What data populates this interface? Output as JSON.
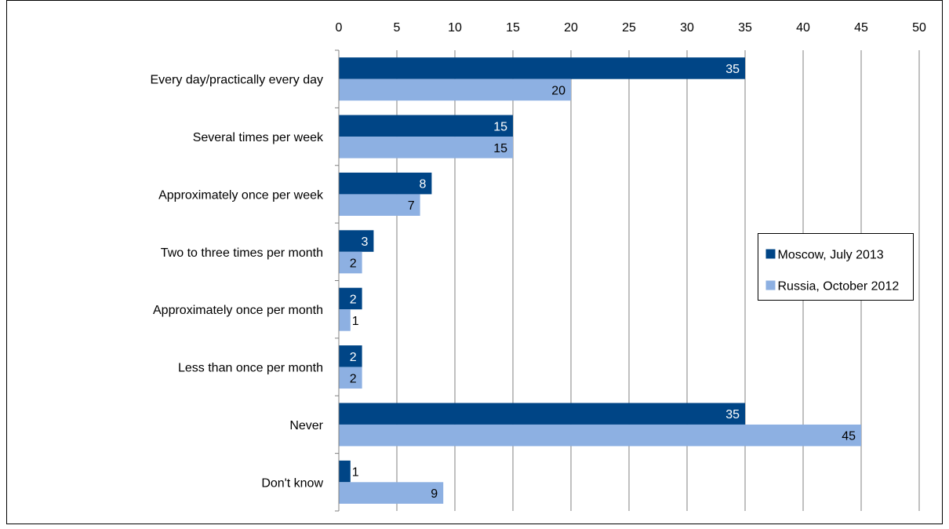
{
  "chart_data": {
    "type": "bar",
    "orientation": "horizontal",
    "categories": [
      "Every day/practically every day",
      "Several times per week",
      "Approximately once per week",
      "Two to three times per month",
      "Approximately once per month",
      "Less than once per month",
      "Never",
      "Don't know"
    ],
    "series": [
      {
        "name": "Moscow, July 2013",
        "color": "#004586",
        "values": [
          35,
          15,
          8,
          3,
          2,
          2,
          35,
          1
        ]
      },
      {
        "name": "Russia, October 2012",
        "color": "#8DB0E2",
        "values": [
          20,
          15,
          7,
          2,
          1,
          2,
          45,
          9
        ]
      }
    ],
    "xlim": [
      0,
      50
    ],
    "x_ticks": [
      0,
      5,
      10,
      15,
      20,
      25,
      30,
      35,
      40,
      45,
      50
    ],
    "x_axis_position": "top",
    "grid": true,
    "legend_position": "right",
    "data_labels": true
  }
}
